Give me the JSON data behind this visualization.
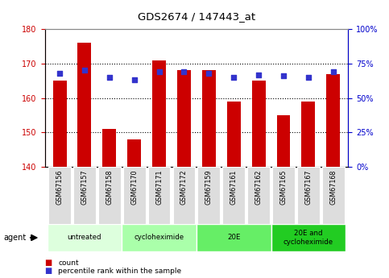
{
  "title": "GDS2674 / 147443_at",
  "samples": [
    "GSM67156",
    "GSM67157",
    "GSM67158",
    "GSM67170",
    "GSM67171",
    "GSM67172",
    "GSM67159",
    "GSM67161",
    "GSM67162",
    "GSM67165",
    "GSM67167",
    "GSM67168"
  ],
  "counts": [
    165,
    176,
    151,
    148,
    171,
    168,
    168,
    159,
    165,
    155,
    159,
    167
  ],
  "percentile_ranks": [
    68,
    70,
    65,
    63,
    69,
    69,
    68,
    65,
    67,
    66,
    65,
    69
  ],
  "ylim_left": [
    140,
    180
  ],
  "ylim_right": [
    0,
    100
  ],
  "yticks_left": [
    140,
    150,
    160,
    170,
    180
  ],
  "yticks_right": [
    0,
    25,
    50,
    75,
    100
  ],
  "bar_color": "#CC0000",
  "dot_color": "#3333CC",
  "left_axis_color": "#CC0000",
  "right_axis_color": "#0000CC",
  "groups": [
    {
      "label": "untreated",
      "start": 0,
      "end": 2,
      "color": "#DDFFDD"
    },
    {
      "label": "cycloheximide",
      "start": 3,
      "end": 5,
      "color": "#AAFFAA"
    },
    {
      "label": "20E",
      "start": 6,
      "end": 8,
      "color": "#66EE66"
    },
    {
      "label": "20E and\ncycloheximide",
      "start": 9,
      "end": 11,
      "color": "#22CC22"
    }
  ],
  "legend_items": [
    {
      "label": "count",
      "color": "#CC0000"
    },
    {
      "label": "percentile rank within the sample",
      "color": "#3333CC"
    }
  ]
}
